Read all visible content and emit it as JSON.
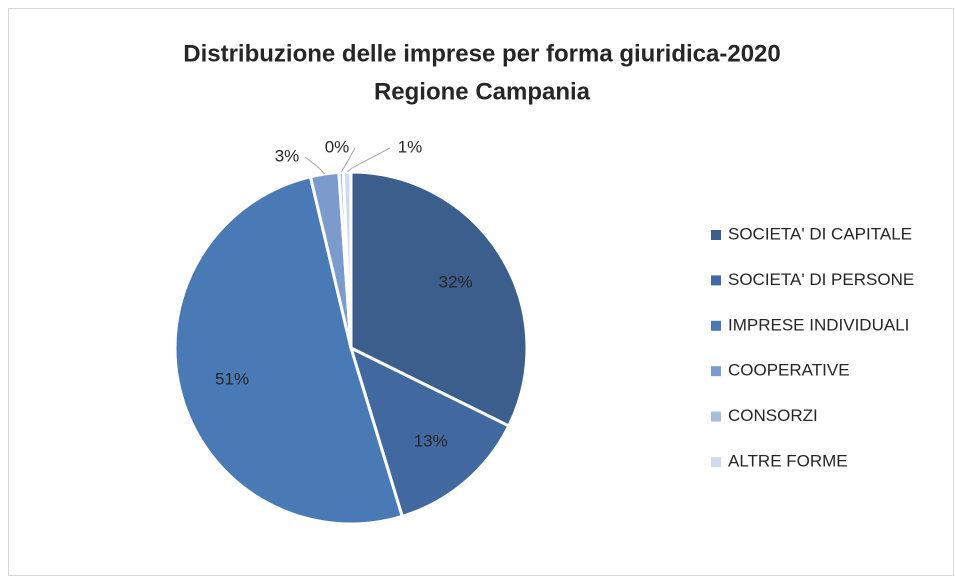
{
  "chart_data": {
    "type": "pie",
    "title": [
      "Distribuzione delle imprese per forma giuridica-2020",
      "Regione Campania"
    ],
    "categories": [
      "SOCIETA' DI CAPITALE",
      "SOCIETA' DI PERSONE",
      "IMPRESE INDIVIDUALI",
      "COOPERATIVE",
      "CONSORZI",
      "ALTRE FORME"
    ],
    "values": [
      32.3,
      13.0,
      51.0,
      2.6,
      0.4,
      0.7
    ],
    "value_labels": [
      "32%",
      "13%",
      "51%",
      "3%",
      "0%",
      "1%"
    ],
    "colors": [
      "#3b5e8c",
      "#4169a0",
      "#4a7ab5",
      "#7a9bcb",
      "#a6bde0",
      "#cfdcef"
    ],
    "legend": "right"
  }
}
